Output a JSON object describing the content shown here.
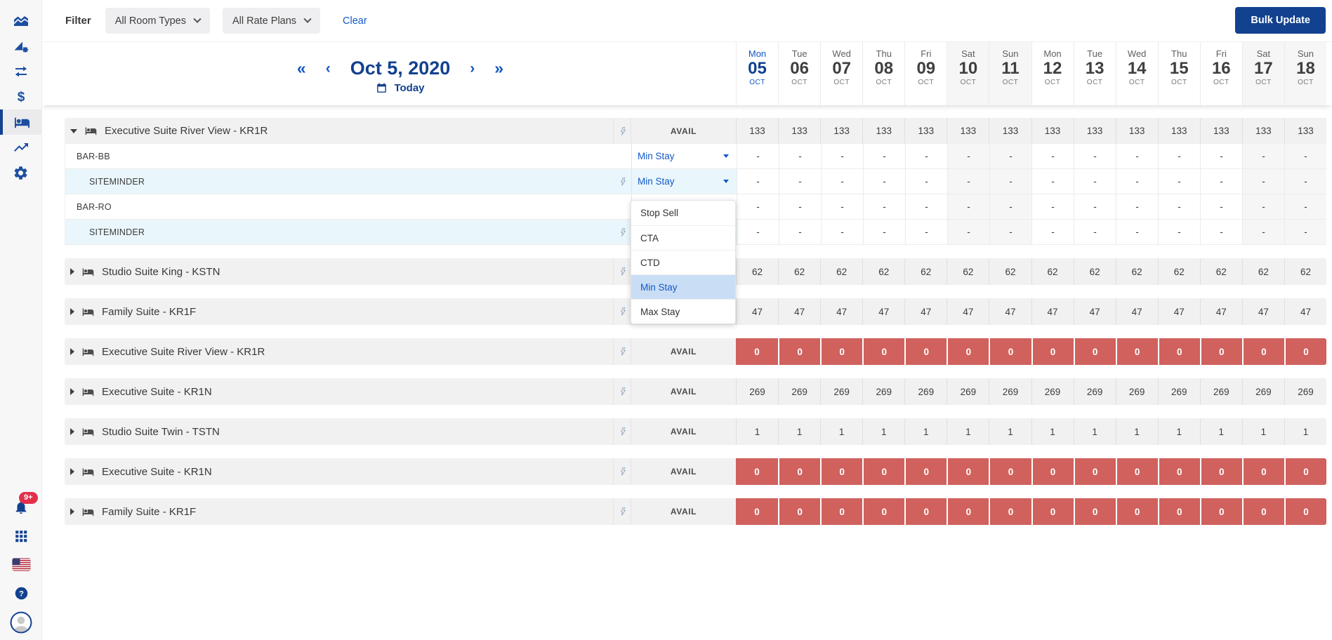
{
  "colors": {
    "brand_blue": "#12418f",
    "link_blue": "#1459c8",
    "soldout_red": "#d0615d",
    "selected_option_bg": "#c9def5",
    "row_gray": "#f1f1f2",
    "channel_row_bg": "#e9f6fb",
    "badge_red": "#e3314b"
  },
  "sidebar": {
    "items": [
      {
        "icon": "area-chart-icon",
        "active": false
      },
      {
        "icon": "ramp-gear-icon",
        "active": false
      },
      {
        "icon": "swap-arrows-icon",
        "active": false
      },
      {
        "icon": "dollar-icon",
        "active": false
      },
      {
        "icon": "bed-icon",
        "active": true
      },
      {
        "icon": "trending-up-icon",
        "active": false
      },
      {
        "icon": "settings-gear-icon",
        "active": false
      }
    ],
    "notification_badge": "9+",
    "bottom_icons": [
      "notifications-bell-icon",
      "apps-grid-icon",
      "us-flag-icon",
      "help-icon",
      "user-avatar"
    ]
  },
  "filter_bar": {
    "label": "Filter",
    "room_types_value": "All Room Types",
    "rate_plans_value": "All Rate Plans",
    "clear_label": "Clear",
    "bulk_update_label": "Bulk Update"
  },
  "date_nav": {
    "current_date": "Oct 5, 2020",
    "today_label": "Today"
  },
  "dates": [
    {
      "dow": "Mon",
      "day": "05",
      "month": "OCT",
      "today": true,
      "weekend": false
    },
    {
      "dow": "Tue",
      "day": "06",
      "month": "OCT",
      "today": false,
      "weekend": false
    },
    {
      "dow": "Wed",
      "day": "07",
      "month": "OCT",
      "today": false,
      "weekend": false
    },
    {
      "dow": "Thu",
      "day": "08",
      "month": "OCT",
      "today": false,
      "weekend": false
    },
    {
      "dow": "Fri",
      "day": "09",
      "month": "OCT",
      "today": false,
      "weekend": false
    },
    {
      "dow": "Sat",
      "day": "10",
      "month": "OCT",
      "today": false,
      "weekend": true
    },
    {
      "dow": "Sun",
      "day": "11",
      "month": "OCT",
      "today": false,
      "weekend": true
    },
    {
      "dow": "Mon",
      "day": "12",
      "month": "OCT",
      "today": false,
      "weekend": false
    },
    {
      "dow": "Tue",
      "day": "13",
      "month": "OCT",
      "today": false,
      "weekend": false
    },
    {
      "dow": "Wed",
      "day": "14",
      "month": "OCT",
      "today": false,
      "weekend": false
    },
    {
      "dow": "Thu",
      "day": "15",
      "month": "OCT",
      "today": false,
      "weekend": false
    },
    {
      "dow": "Fri",
      "day": "16",
      "month": "OCT",
      "today": false,
      "weekend": false
    },
    {
      "dow": "Sat",
      "day": "17",
      "month": "OCT",
      "today": false,
      "weekend": true
    },
    {
      "dow": "Sun",
      "day": "18",
      "month": "OCT",
      "today": false,
      "weekend": true
    }
  ],
  "dropdown": {
    "options": [
      "Stop Sell",
      "CTA",
      "CTD",
      "Min Stay",
      "Max Stay"
    ],
    "selected": "Min Stay"
  },
  "table": {
    "avail_label": "AVAIL",
    "expanded_group": {
      "name": "Executive Suite River View - KR1R",
      "avail_values": [
        "133",
        "133",
        "133",
        "133",
        "133",
        "133",
        "133",
        "133",
        "133",
        "133",
        "133",
        "133",
        "133",
        "133"
      ],
      "rate_plans": [
        {
          "label": "BAR-BB",
          "channel": false,
          "selector": "Min Stay",
          "values": [
            "-",
            "-",
            "-",
            "-",
            "-",
            "-",
            "-",
            "-",
            "-",
            "-",
            "-",
            "-",
            "-",
            "-"
          ]
        },
        {
          "label": "SITEMINDER",
          "channel": true,
          "selector": "Min Stay",
          "values": [
            "-",
            "-",
            "-",
            "-",
            "-",
            "-",
            "-",
            "-",
            "-",
            "-",
            "-",
            "-",
            "-",
            "-"
          ]
        },
        {
          "label": "BAR-RO",
          "channel": false,
          "selector": "",
          "values": [
            "-",
            "-",
            "-",
            "-",
            "-",
            "-",
            "-",
            "-",
            "-",
            "-",
            "-",
            "-",
            "-",
            "-"
          ]
        },
        {
          "label": "SITEMINDER",
          "channel": true,
          "selector": "",
          "values": [
            "-",
            "-",
            "-",
            "-",
            "-",
            "-",
            "-",
            "-",
            "-",
            "-",
            "-",
            "-",
            "-",
            "-"
          ]
        }
      ]
    },
    "collapsed_groups": [
      {
        "name": "Studio Suite King - KSTN",
        "soldout": false,
        "values": [
          "62",
          "62",
          "62",
          "62",
          "62",
          "62",
          "62",
          "62",
          "62",
          "62",
          "62",
          "62",
          "62",
          "62"
        ]
      },
      {
        "name": "Family Suite - KR1F",
        "soldout": false,
        "values": [
          "47",
          "47",
          "47",
          "47",
          "47",
          "47",
          "47",
          "47",
          "47",
          "47",
          "47",
          "47",
          "47",
          "47"
        ]
      },
      {
        "name": "Executive Suite River View - KR1R",
        "soldout": true,
        "values": [
          "0",
          "0",
          "0",
          "0",
          "0",
          "0",
          "0",
          "0",
          "0",
          "0",
          "0",
          "0",
          "0",
          "0"
        ]
      },
      {
        "name": "Executive Suite - KR1N",
        "soldout": false,
        "values": [
          "269",
          "269",
          "269",
          "269",
          "269",
          "269",
          "269",
          "269",
          "269",
          "269",
          "269",
          "269",
          "269",
          "269"
        ]
      },
      {
        "name": "Studio Suite Twin - TSTN",
        "soldout": false,
        "values": [
          "1",
          "1",
          "1",
          "1",
          "1",
          "1",
          "1",
          "1",
          "1",
          "1",
          "1",
          "1",
          "1",
          "1"
        ]
      },
      {
        "name": "Executive Suite - KR1N",
        "soldout": true,
        "values": [
          "0",
          "0",
          "0",
          "0",
          "0",
          "0",
          "0",
          "0",
          "0",
          "0",
          "0",
          "0",
          "0",
          "0"
        ]
      },
      {
        "name": "Family Suite - KR1F",
        "soldout": true,
        "values": [
          "0",
          "0",
          "0",
          "0",
          "0",
          "0",
          "0",
          "0",
          "0",
          "0",
          "0",
          "0",
          "0",
          "0"
        ]
      }
    ]
  }
}
